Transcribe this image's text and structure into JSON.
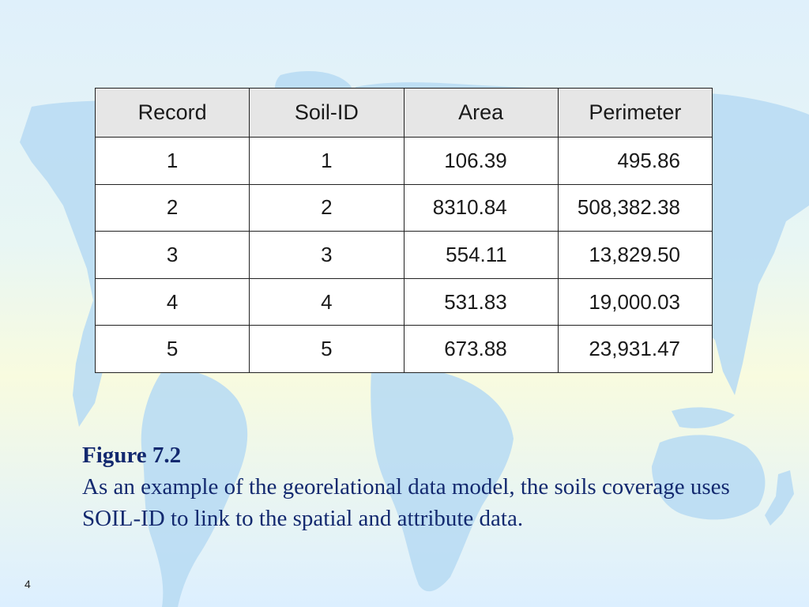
{
  "table": {
    "headers": [
      "Record",
      "Soil-ID",
      "Area",
      "Perimeter"
    ],
    "rows": [
      [
        "1",
        "1",
        "106.39",
        "495.86"
      ],
      [
        "2",
        "2",
        "8310.84",
        "508,382.38"
      ],
      [
        "3",
        "3",
        "554.11",
        "13,829.50"
      ],
      [
        "4",
        "4",
        "531.83",
        "19,000.03"
      ],
      [
        "5",
        "5",
        "673.88",
        "23,931.47"
      ]
    ]
  },
  "caption": {
    "title": "Figure 7.2",
    "text": "As an example of the georelational data model, the soils coverage uses SOIL-ID to link to the spatial and attribute data."
  },
  "slide": {
    "page_number": "4"
  }
}
